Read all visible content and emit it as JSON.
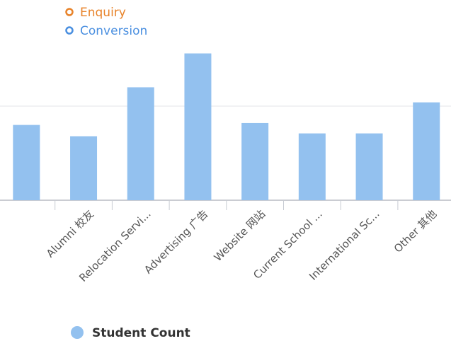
{
  "chart_data": {
    "type": "bar",
    "categories": [
      null,
      "Alumni 校友",
      "Relocation Servi...",
      "Advertising 广告",
      "Website 网站",
      "Current School ...",
      "International Sc...",
      "Other 其他"
    ],
    "series": [
      {
        "name": "Student Count",
        "color": "#93c1ef",
        "values": [
          80,
          68,
          120,
          156,
          82,
          71,
          71,
          104
        ]
      }
    ],
    "top_legend": [
      {
        "name": "Enquiry",
        "color": "#e8832a"
      },
      {
        "name": "Conversion",
        "color": "#4a8fe0"
      }
    ],
    "ylim": [
      0,
      200
    ],
    "yticks": [
      0,
      100
    ],
    "grid": true
  }
}
